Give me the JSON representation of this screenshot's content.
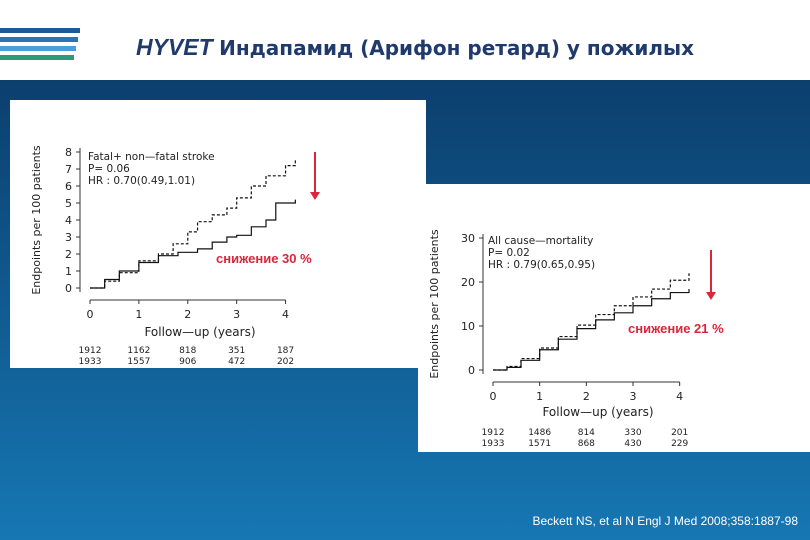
{
  "header": {
    "title_brand": "HYVET",
    "title_rest": "Индапамид (Арифон ретард) у пожилых"
  },
  "colors": {
    "title": "#1f3a6b",
    "band_top": "#0b3f6e",
    "band_bottom": "#1677b3",
    "reduction_text": "#d9263a",
    "logo_stripes": [
      "#1f5a96",
      "#2a74b8",
      "#4a9fd6",
      "#2e9a7a"
    ]
  },
  "citation": "Beckett NS, et al N Engl J Med 2008;358:1887-98",
  "chart_data": [
    {
      "type": "line",
      "legend_lines": [
        "Fatal+ non—fatal  stroke",
        "P= 0.06",
        "HR : 0.70(0.49,1.01)"
      ],
      "xlabel": "Follow—up  (years)",
      "ylabel": "Endpoints per 100 patients",
      "xlim": [
        0,
        4.5
      ],
      "ylim": [
        0,
        8
      ],
      "xticks": [
        0,
        1,
        2,
        3,
        4
      ],
      "yticks": [
        0,
        1,
        2,
        3,
        4,
        5,
        6,
        7,
        8
      ],
      "series": [
        {
          "style": "dashed",
          "x": [
            0,
            0.3,
            0.6,
            1.0,
            1.4,
            1.7,
            2.0,
            2.2,
            2.5,
            2.8,
            3.0,
            3.3,
            3.6,
            4.0,
            4.2
          ],
          "y": [
            0,
            0.4,
            0.9,
            1.6,
            2.0,
            2.6,
            3.3,
            3.9,
            4.3,
            4.7,
            5.3,
            6.0,
            6.6,
            7.2,
            7.6
          ]
        },
        {
          "style": "solid",
          "x": [
            0,
            0.3,
            0.6,
            1.0,
            1.4,
            1.8,
            2.2,
            2.5,
            2.8,
            3.0,
            3.3,
            3.6,
            3.8,
            4.2
          ],
          "y": [
            0,
            0.5,
            1.0,
            1.5,
            1.9,
            2.1,
            2.3,
            2.7,
            3.0,
            3.1,
            3.6,
            4.0,
            5.0,
            5.2
          ]
        }
      ],
      "risk_table": {
        "x": [
          0,
          1,
          2,
          3,
          4
        ],
        "rows": [
          [
            "1912",
            "1162",
            "818",
            "351",
            "187"
          ],
          [
            "1933",
            "1557",
            "906",
            "472",
            "202"
          ]
        ]
      },
      "reduction": "снижение 30 %"
    },
    {
      "type": "line",
      "legend_lines": [
        "All  cause—mortality",
        "P= 0.02",
        "HR : 0.79(0.65,0.95)"
      ],
      "xlabel": "Follow—up  (years)",
      "ylabel": "Endpoints per 100 patients",
      "xlim": [
        0,
        4.5
      ],
      "ylim": [
        0,
        30
      ],
      "xticks": [
        0,
        1,
        2,
        3,
        4
      ],
      "yticks": [
        0,
        10,
        20,
        30
      ],
      "series": [
        {
          "style": "dashed",
          "x": [
            0,
            0.3,
            0.6,
            1.0,
            1.4,
            1.8,
            2.2,
            2.6,
            3.0,
            3.4,
            3.8,
            4.2
          ],
          "y": [
            0,
            0.8,
            2.6,
            5.0,
            7.6,
            10.2,
            12.6,
            14.6,
            16.6,
            18.4,
            20.4,
            22.0
          ]
        },
        {
          "style": "solid",
          "x": [
            0,
            0.3,
            0.6,
            1.0,
            1.4,
            1.8,
            2.2,
            2.6,
            3.0,
            3.4,
            3.8,
            4.2
          ],
          "y": [
            0,
            0.6,
            2.2,
            4.6,
            7.0,
            9.4,
            11.4,
            13.0,
            14.6,
            16.2,
            17.6,
            18.4
          ]
        }
      ],
      "risk_table": {
        "x": [
          0,
          1,
          2,
          3,
          4
        ],
        "rows": [
          [
            "1912",
            "1486",
            "814",
            "330",
            "201"
          ],
          [
            "1933",
            "1571",
            "868",
            "430",
            "229"
          ]
        ]
      },
      "reduction": "снижение 21 %"
    }
  ]
}
